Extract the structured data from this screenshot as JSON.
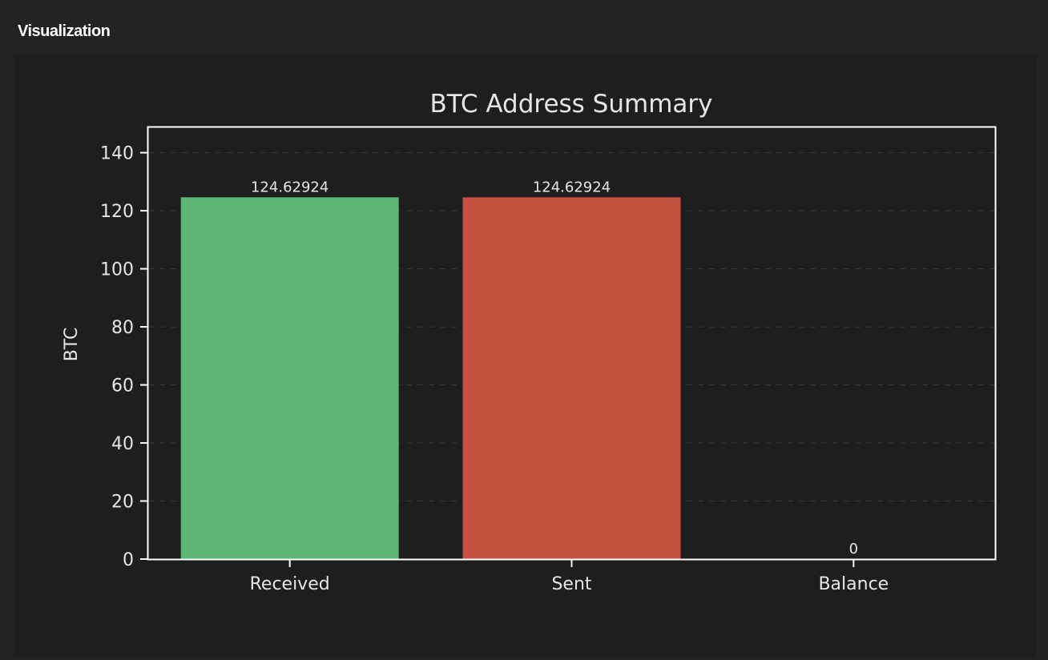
{
  "section": {
    "title": "Visualization"
  },
  "colors": {
    "received": "#5cb874",
    "sent": "#c55240",
    "balance": "#5cb874",
    "text": "#e6e6e6",
    "axis": "#ffffff",
    "grid": "#3a3a3a"
  },
  "chart_data": {
    "type": "bar",
    "title": "BTC Address Summary",
    "xlabel": "",
    "ylabel": "BTC",
    "categories": [
      "Received",
      "Sent",
      "Balance"
    ],
    "values": [
      124.62924,
      124.62924,
      0
    ],
    "value_labels": [
      "124.62924",
      "124.62924",
      "0"
    ],
    "ylim": [
      0,
      149
    ],
    "yticks": [
      0,
      20,
      40,
      60,
      80,
      100,
      120,
      140
    ],
    "ytick_labels": [
      "0",
      "20",
      "40",
      "60",
      "80",
      "100",
      "120",
      "140"
    ],
    "grid": "y-dashed",
    "legend": null
  }
}
